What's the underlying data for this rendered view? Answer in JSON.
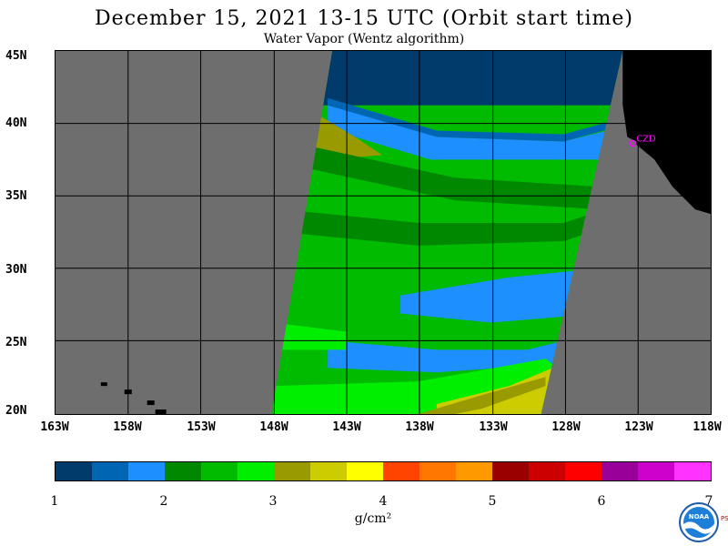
{
  "title": "December 15, 2021  13-15 UTC  (Orbit start time)",
  "subtitle": "Water Vapor (Wentz algorithm)",
  "lat_labels": [
    "45N",
    "40N",
    "35N",
    "30N",
    "25N",
    "20N"
  ],
  "lon_labels": [
    "163W",
    "158W",
    "153W",
    "148W",
    "143W",
    "138W",
    "133W",
    "128W",
    "123W",
    "118W"
  ],
  "station_label": "CZD",
  "colorbar": {
    "colors": [
      "#003b6b",
      "#0066b3",
      "#1e8fff",
      "#008800",
      "#00bb00",
      "#00ee00",
      "#999900",
      "#cccc00",
      "#ffff00",
      "#ff4400",
      "#ff7700",
      "#ff9900",
      "#990000",
      "#cc0000",
      "#ff0000",
      "#990099",
      "#cc00cc",
      "#ff33ff"
    ],
    "tick_labels": [
      "1",
      "2",
      "3",
      "4",
      "5",
      "6",
      "7"
    ],
    "unit": "g/cm²"
  },
  "logo": {
    "text": "NOAA",
    "side_text": "PSL"
  },
  "colors": {
    "land_masked": "#6e6e6e",
    "no_data": "#6e6e6e",
    "coast_land": "#000000",
    "grid": "#000000",
    "station": "#ff00ff"
  }
}
